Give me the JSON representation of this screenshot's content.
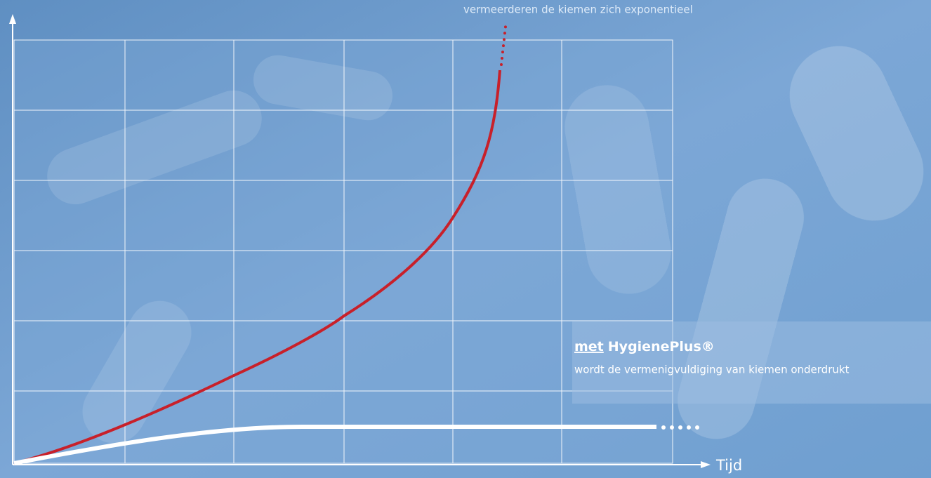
{
  "annotations": {
    "without": "vermeerderen de kiemen zich exponentieel",
    "with_prefix": "met",
    "with_brand": "HygienePlus®",
    "with_text": "wordt de vermenigvuldiging van kiemen onderdrukt"
  },
  "axis": {
    "x_label": "Tijd"
  }
}
